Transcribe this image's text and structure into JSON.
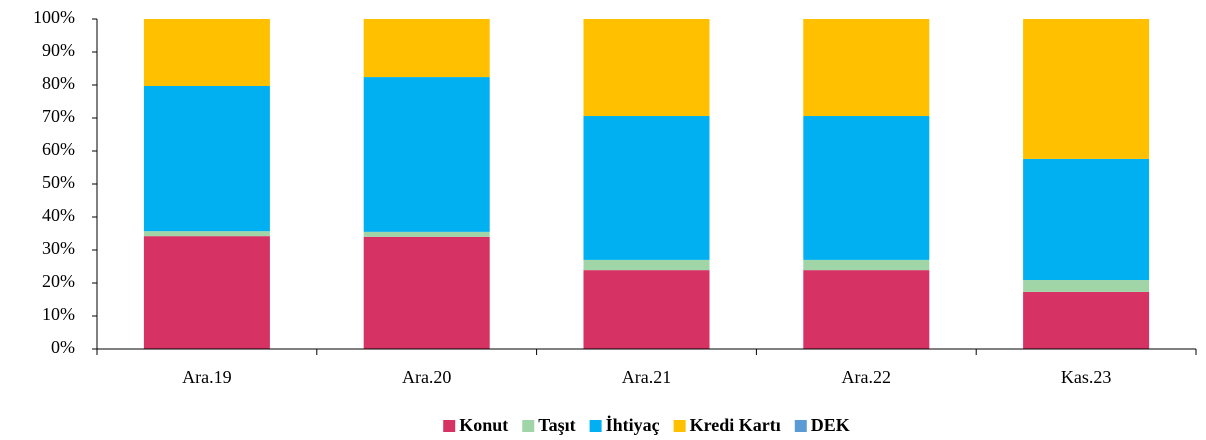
{
  "chart_data": {
    "type": "stacked_bar",
    "categories": [
      "Ara.19",
      "Ara.20",
      "Ara.21",
      "Ara.22",
      "Kas.23"
    ],
    "series": [
      {
        "name": "Konut",
        "color": "#d63264",
        "values": [
          34.2,
          34.0,
          23.9,
          23.9,
          17.3
        ]
      },
      {
        "name": "Taşıt",
        "color": "#a0d5a8",
        "values": [
          1.5,
          1.5,
          3.1,
          3.1,
          3.6
        ]
      },
      {
        "name": "İhtiyaç",
        "color": "#00b0f0",
        "values": [
          44.0,
          46.9,
          43.6,
          43.6,
          36.7
        ]
      },
      {
        "name": "Kredi Kartı",
        "color": "#ffc000",
        "values": [
          20.3,
          17.6,
          29.4,
          29.4,
          42.4
        ]
      },
      {
        "name": "DEK",
        "color": "#5b9bd5",
        "values": [
          0,
          0,
          0,
          0,
          0
        ]
      }
    ],
    "ylim": [
      0,
      100
    ],
    "yticks": [
      {
        "value": 0,
        "label": "0%"
      },
      {
        "value": 10,
        "label": "10%"
      },
      {
        "value": 20,
        "label": "20%"
      },
      {
        "value": 30,
        "label": "30%"
      },
      {
        "value": 40,
        "label": "40%"
      },
      {
        "value": 50,
        "label": "50%"
      },
      {
        "value": 60,
        "label": "60%"
      },
      {
        "value": 70,
        "label": "70%"
      },
      {
        "value": 80,
        "label": "80%"
      },
      {
        "value": 90,
        "label": "90%"
      },
      {
        "value": 100,
        "label": "100%"
      }
    ],
    "legend": "bottom"
  }
}
